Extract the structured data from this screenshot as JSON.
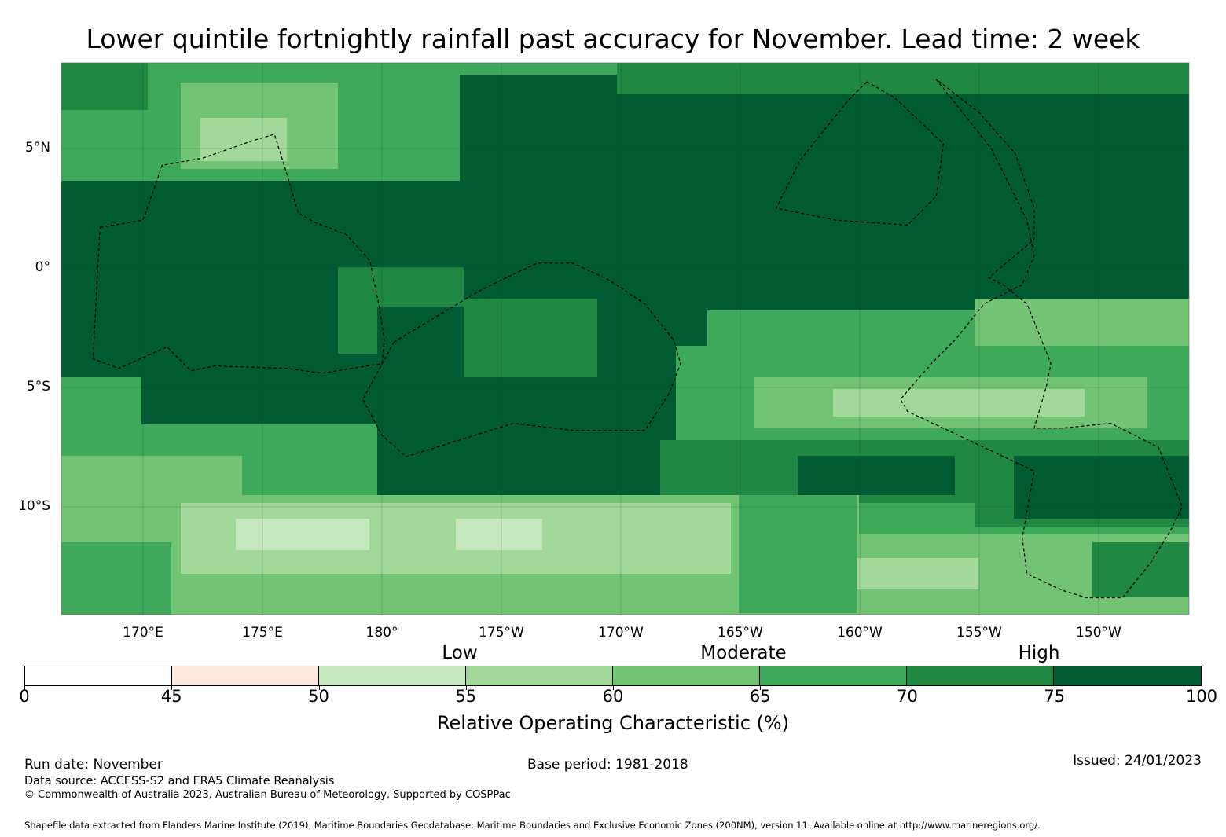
{
  "title": "Lower quintile fortnightly rainfall past accuracy for November. Lead time: 2 week",
  "map": {
    "lon_range": [
      167,
      212.5
    ],
    "lat_range": [
      -14.5,
      8.7
    ],
    "lat_labels": [
      {
        "lat": 5,
        "label": "5°N"
      },
      {
        "lat": 0,
        "label": "0°"
      },
      {
        "lat": -5,
        "label": "5°S"
      },
      {
        "lat": -10,
        "label": "10°S"
      }
    ],
    "lon_labels": [
      {
        "lon": 170,
        "label": "170°E"
      },
      {
        "lon": 175,
        "label": "175°E"
      },
      {
        "lon": 180,
        "label": "180°"
      },
      {
        "lon": 185,
        "label": "175°W"
      },
      {
        "lon": 190,
        "label": "170°W"
      },
      {
        "lon": 195,
        "label": "165°W"
      },
      {
        "lon": 200,
        "label": "160°W"
      },
      {
        "lon": 205,
        "label": "155°W"
      },
      {
        "lon": 210,
        "label": "150°W"
      }
    ],
    "eez_boundaries": [
      [
        [
          168.2,
          1.7
        ],
        [
          170.0,
          2.0
        ],
        [
          170.8,
          4.3
        ],
        [
          172.5,
          4.6
        ],
        [
          174.5,
          5.3
        ],
        [
          175.5,
          5.6
        ],
        [
          176.0,
          4.0
        ],
        [
          176.5,
          2.3
        ],
        [
          177.2,
          1.9
        ],
        [
          178.5,
          1.4
        ],
        [
          179.5,
          0.3
        ],
        [
          179.9,
          -1.7
        ],
        [
          180.1,
          -3.0
        ],
        [
          180.0,
          -4.0
        ],
        [
          177.5,
          -4.4
        ],
        [
          176.0,
          -4.2
        ],
        [
          173.0,
          -4.1
        ],
        [
          172.0,
          -4.3
        ],
        [
          171.0,
          -3.3
        ],
        [
          169.0,
          -4.2
        ],
        [
          167.9,
          -3.8
        ],
        [
          168.2,
          1.7
        ]
      ],
      [
        [
          180.5,
          -3.1
        ],
        [
          184.0,
          -1.0
        ],
        [
          185.0,
          -0.5
        ],
        [
          186.5,
          0.2
        ],
        [
          188.0,
          0.2
        ],
        [
          189.5,
          -0.5
        ],
        [
          191.0,
          -1.5
        ],
        [
          192.2,
          -3.0
        ],
        [
          192.5,
          -4.0
        ],
        [
          192.0,
          -5.3
        ],
        [
          191.0,
          -6.8
        ],
        [
          188.0,
          -6.8
        ],
        [
          185.5,
          -6.5
        ],
        [
          181.0,
          -7.9
        ],
        [
          180.0,
          -7.0
        ],
        [
          179.2,
          -5.5
        ],
        [
          180.5,
          -3.1
        ]
      ],
      [
        [
          203.2,
          7.9
        ],
        [
          205.5,
          5.0
        ],
        [
          207.0,
          2.0
        ],
        [
          207.3,
          0.5
        ],
        [
          206.8,
          -0.7
        ],
        [
          205.2,
          -1.5
        ],
        [
          204.0,
          -3.0
        ],
        [
          203.0,
          -4.0
        ],
        [
          201.7,
          -5.5
        ],
        [
          202.0,
          -6.0
        ],
        [
          207.3,
          -8.5
        ],
        [
          206.8,
          -11.3
        ],
        [
          207.0,
          -12.8
        ],
        [
          208.5,
          -13.5
        ],
        [
          209.5,
          -13.8
        ],
        [
          211.0,
          -13.8
        ],
        [
          212.2,
          -12.3
        ],
        [
          213.0,
          -11.0
        ],
        [
          213.5,
          -10.0
        ],
        [
          212.5,
          -7.5
        ],
        [
          210.5,
          -6.5
        ],
        [
          208.5,
          -6.7
        ],
        [
          207.3,
          -6.7
        ],
        [
          207.8,
          -5.0
        ],
        [
          208.0,
          -4.0
        ],
        [
          207.0,
          -1.5
        ],
        [
          206.0,
          -0.7
        ],
        [
          205.4,
          -0.4
        ],
        [
          207.3,
          1.2
        ],
        [
          207.3,
          2.5
        ],
        [
          206.5,
          4.8
        ],
        [
          205.0,
          6.5
        ],
        [
          203.2,
          7.9
        ]
      ],
      [
        [
          200.3,
          7.8
        ],
        [
          201.5,
          7.1
        ],
        [
          203.5,
          5.2
        ],
        [
          203.2,
          3.0
        ],
        [
          202.0,
          1.8
        ],
        [
          199.0,
          2.0
        ],
        [
          196.5,
          2.5
        ],
        [
          197.5,
          4.5
        ],
        [
          199.5,
          7.0
        ],
        [
          200.3,
          7.8
        ]
      ]
    ]
  },
  "legend": {
    "segments": [
      {
        "from": 0,
        "to": 45,
        "color": "#ffffff"
      },
      {
        "from": 45,
        "to": 50,
        "color": "#fee8dd"
      },
      {
        "from": 50,
        "to": 55,
        "color": "#c6e8bf"
      },
      {
        "from": 55,
        "to": 60,
        "color": "#a2d99b"
      },
      {
        "from": 60,
        "to": 65,
        "color": "#73c375"
      },
      {
        "from": 65,
        "to": 70,
        "color": "#3fa95b"
      },
      {
        "from": 70,
        "to": 75,
        "color": "#208842"
      },
      {
        "from": 75,
        "to": 100,
        "color": "#005a32"
      }
    ],
    "ticks": [
      "0",
      "45",
      "50",
      "55",
      "60",
      "65",
      "70",
      "75",
      "100"
    ],
    "categories": {
      "low": "Low",
      "moderate": "Moderate",
      "high": "High"
    },
    "label": "Relative Operating Characteristic (%)"
  },
  "footer": {
    "run_date": "Run date: November",
    "base_period": "Base period: 1981-2018",
    "issued": "Issued: 24/01/2023",
    "data_source": "Data source: ACCESS-S2 and ERA5 Climate Reanalysis",
    "copyright": "© Commonwealth of Australia 2023, Australian Bureau of Meteorology, Supported by COSPPac",
    "shapefile": "Shapefile data extracted from Flanders Marine Institute (2019), Maritime Boundaries Geodatabase: Maritime Boundaries and Exclusive Economic Zones (200NM), version 11. Available online at http://www.marineregions.org/."
  }
}
